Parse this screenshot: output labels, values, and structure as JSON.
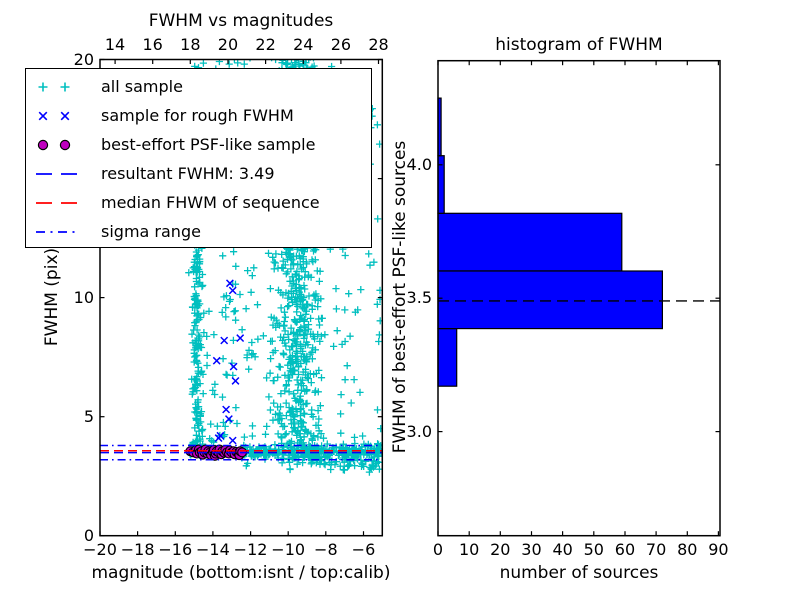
{
  "figure": {
    "background": "#ffffff"
  },
  "colors": {
    "all_sample_cyan": "#00BFBF",
    "rough_sample_blue": "#0000FF",
    "psf_sample_purple": "#BF00BF",
    "median_red": "#FF0000",
    "histogram_bar_blue": "#0000FF",
    "axis_black": "#000000"
  },
  "chart_data": [
    {
      "id": "fwhm_vs_magnitudes",
      "type": "scatter",
      "title": "FWHM vs magnitudes",
      "xlabel": "magnitude (bottom:isnt / top:calib)",
      "ylabel": "FWHM (pix)",
      "xlim": [
        -20,
        -5
      ],
      "ylim": [
        0,
        20
      ],
      "grid": false,
      "x_ticks_bottom": [
        {
          "v": -20,
          "label": "−20"
        },
        {
          "v": -18,
          "label": "−18"
        },
        {
          "v": -16,
          "label": "−16"
        },
        {
          "v": -14,
          "label": "−14"
        },
        {
          "v": -12,
          "label": "−12"
        },
        {
          "v": -10,
          "label": "−10"
        },
        {
          "v": -8,
          "label": "−8"
        },
        {
          "v": -6,
          "label": "−6"
        }
      ],
      "top_axis_offset": 33.2,
      "x_ticks_top": [
        {
          "v": 14,
          "label": "14"
        },
        {
          "v": 16,
          "label": "16"
        },
        {
          "v": 18,
          "label": "18"
        },
        {
          "v": 20,
          "label": "20"
        },
        {
          "v": 22,
          "label": "22"
        },
        {
          "v": 24,
          "label": "24"
        },
        {
          "v": 26,
          "label": "26"
        },
        {
          "v": 28,
          "label": "28"
        }
      ],
      "y_ticks": [
        {
          "v": 0,
          "label": "0"
        },
        {
          "v": 5,
          "label": "5"
        },
        {
          "v": 10,
          "label": "10"
        },
        {
          "v": 15,
          "label": "15"
        },
        {
          "v": 20,
          "label": "20"
        }
      ],
      "resultant_fwhm": 3.49,
      "median_fwhm": 3.57,
      "sigma_range": [
        3.19,
        3.79
      ],
      "hlines": [
        {
          "name": "sigma-upper",
          "y": 3.79,
          "color": "#0000FF",
          "style": "dashdot"
        },
        {
          "name": "sigma-lower",
          "y": 3.19,
          "color": "#0000FF",
          "style": "dashdot"
        },
        {
          "name": "median-fwhm",
          "y": 3.57,
          "color": "#FF0000",
          "style": "dashed"
        },
        {
          "name": "resultant-fwhm",
          "y": 3.49,
          "color": "#0000FF",
          "style": "dashed"
        }
      ],
      "series": [
        {
          "name": "all sample",
          "marker": "plus",
          "color": "#00BFBF",
          "seed": 42,
          "clusters": [
            {
              "name": "left-band",
              "count": 165,
              "x": {
                "dist": "normal",
                "mean": -14.82,
                "sd": 0.14
              },
              "y": {
                "dist": "uniform",
                "min": 3.55,
                "max": 12.5
              }
            },
            {
              "name": "left-band-high",
              "count": 28,
              "x": {
                "dist": "normal",
                "mean": -14.8,
                "sd": 0.18
              },
              "y": {
                "dist": "uniform",
                "min": 12.5,
                "max": 19.9
              }
            },
            {
              "name": "mid-sparse",
              "count": 120,
              "x": {
                "dist": "uniform",
                "min": -14.55,
                "max": -11.75
              },
              "y": {
                "dist": "uniform",
                "min": 3.9,
                "max": 20.2
              }
            },
            {
              "name": "core-dense",
              "count": 620,
              "x": {
                "dist": "normal",
                "mean": -9.55,
                "sd": 0.6,
                "min": -11.3,
                "max": -7.5
              },
              "y": {
                "dist": "uniform",
                "min": 3.4,
                "max": 20.4
              }
            },
            {
              "name": "core-halo",
              "count": 240,
              "x": {
                "dist": "normal",
                "mean": -9.4,
                "sd": 1.35,
                "min": -12.1,
                "max": -6.7
              },
              "y": {
                "dist": "uniform",
                "min": 3.3,
                "max": 20.3
              }
            },
            {
              "name": "stellar-locus",
              "count": 270,
              "x": {
                "dist": "uniform",
                "min": -12.7,
                "max": -5.05
              },
              "y": {
                "dist": "normal",
                "mean": 3.52,
                "sd": 0.13
              }
            },
            {
              "name": "locus-left",
              "count": 25,
              "x": {
                "dist": "uniform",
                "min": -15.55,
                "max": -12.7
              },
              "y": {
                "dist": "normal",
                "mean": 3.5,
                "sd": 0.1
              }
            },
            {
              "name": "below-locus",
              "count": 60,
              "x": {
                "dist": "uniform",
                "min": -8.8,
                "max": -5.05
              },
              "y": {
                "dist": "normal",
                "mean": 3.05,
                "sd": 0.22,
                "max": 3.35
              }
            },
            {
              "name": "below-locus-left",
              "count": 12,
              "x": {
                "dist": "uniform",
                "min": -12.3,
                "max": -8.8
              },
              "y": {
                "dist": "normal",
                "mean": 3.15,
                "sd": 0.15,
                "max": 3.3
              }
            },
            {
              "name": "right-sparse",
              "count": 25,
              "x": {
                "dist": "uniform",
                "min": -7.5,
                "max": -5.05
              },
              "y": {
                "dist": "uniform",
                "min": 3.8,
                "max": 10.5
              }
            },
            {
              "name": "upper-right-sparse",
              "count": 14,
              "x": {
                "dist": "uniform",
                "min": -7.2,
                "max": -5.3
              },
              "y": {
                "dist": "uniform",
                "min": 11.0,
                "max": 19.8
              }
            },
            {
              "name": "right-high-sparse",
              "count": 10,
              "x": {
                "dist": "uniform",
                "min": -5.8,
                "max": -5.02
              },
              "y": {
                "dist": "uniform",
                "min": 4.0,
                "max": 19.5
              }
            }
          ]
        },
        {
          "name": "sample for rough FWHM",
          "marker": "x",
          "color": "#0000FF",
          "points": [
            [
              -13.1,
              10.6
            ],
            [
              -12.95,
              10.3
            ],
            [
              -13.4,
              8.2
            ],
            [
              -12.55,
              8.3
            ],
            [
              -13.8,
              7.35
            ],
            [
              -12.9,
              7.1
            ],
            [
              -12.8,
              6.5
            ],
            [
              -13.3,
              5.3
            ],
            [
              -13.15,
              4.9
            ],
            [
              -13.6,
              4.2
            ],
            [
              -13.7,
              4.1
            ],
            [
              -12.95,
              4.0
            ],
            [
              -14.2,
              3.6
            ],
            [
              -13.9,
              3.5
            ],
            [
              -13.5,
              3.55
            ],
            [
              -13.2,
              3.45
            ],
            [
              -12.9,
              3.55
            ],
            [
              -12.6,
              3.5
            ],
            [
              -13.35,
              3.62
            ],
            [
              -14.0,
              3.66
            ],
            [
              -14.45,
              3.52
            ],
            [
              -12.7,
              3.44
            ]
          ]
        },
        {
          "name": "best-effort PSF-like sample",
          "marker": "circle",
          "color": "#BF00BF",
          "edge_color": "#000000",
          "points": [
            [
              -15.2,
              3.55
            ],
            [
              -15.05,
              3.5
            ],
            [
              -14.9,
              3.6
            ],
            [
              -14.85,
              3.45
            ],
            [
              -14.75,
              3.62
            ],
            [
              -14.7,
              3.5
            ],
            [
              -14.6,
              3.55
            ],
            [
              -14.55,
              3.4
            ],
            [
              -14.45,
              3.5
            ],
            [
              -14.4,
              3.62
            ],
            [
              -14.3,
              3.45
            ],
            [
              -14.25,
              3.55
            ],
            [
              -14.15,
              3.5
            ],
            [
              -14.1,
              3.38
            ],
            [
              -14.0,
              3.52
            ],
            [
              -13.95,
              3.6
            ],
            [
              -13.9,
              3.35
            ],
            [
              -13.85,
              3.45
            ],
            [
              -13.8,
              3.55
            ],
            [
              -13.7,
              3.5
            ],
            [
              -13.65,
              3.62
            ],
            [
              -13.55,
              3.42
            ],
            [
              -13.5,
              3.55
            ],
            [
              -13.4,
              3.48
            ],
            [
              -13.35,
              3.6
            ],
            [
              -13.25,
              3.5
            ],
            [
              -13.15,
              3.45
            ],
            [
              -13.1,
              3.58
            ],
            [
              -13.0,
              3.5
            ],
            [
              -12.9,
              3.55
            ],
            [
              -12.85,
              3.42
            ],
            [
              -12.75,
              3.52
            ],
            [
              -12.65,
              3.48
            ],
            [
              -12.6,
              3.38
            ],
            [
              -12.55,
              3.55
            ],
            [
              -12.45,
              3.5
            ]
          ]
        }
      ],
      "legend": [
        {
          "label": "all sample",
          "marker": "plus-pair"
        },
        {
          "label": "sample for rough FWHM",
          "marker": "x-pair"
        },
        {
          "label": "best-effort PSF-like sample",
          "marker": "circle-pair"
        },
        {
          "label": "resultant FWHM: 3.49",
          "marker": "dashed-blue-line"
        },
        {
          "label": "median FHWM of sequence",
          "marker": "dashed-red-line"
        },
        {
          "label": "sigma range",
          "marker": "dashdot-blue-line"
        }
      ]
    },
    {
      "id": "histogram_of_fwhm",
      "type": "bar",
      "orientation": "horizontal",
      "title": "histogram of FWHM",
      "xlabel": "number of sources",
      "ylabel": "FWHM of best-effort PSF-like sources",
      "xlim": [
        0,
        90.5
      ],
      "ylim": [
        2.61,
        4.39
      ],
      "grid": false,
      "x_ticks": [
        {
          "v": 0,
          "label": "0"
        },
        {
          "v": 10,
          "label": "10"
        },
        {
          "v": 20,
          "label": "20"
        },
        {
          "v": 30,
          "label": "30"
        },
        {
          "v": 40,
          "label": "40"
        },
        {
          "v": 50,
          "label": "50"
        },
        {
          "v": 60,
          "label": "60"
        },
        {
          "v": 70,
          "label": "70"
        },
        {
          "v": 80,
          "label": "80"
        },
        {
          "v": 90,
          "label": "90"
        }
      ],
      "y_ticks": [
        {
          "v": 3.0,
          "label": "3.0"
        },
        {
          "v": 3.5,
          "label": "3.5"
        },
        {
          "v": 4.0,
          "label": "4.0"
        }
      ],
      "bin_edges": [
        3.17,
        3.386,
        3.602,
        3.818,
        4.034,
        4.25
      ],
      "counts": [
        6,
        72,
        59,
        2,
        1
      ],
      "bar_color": "#0000FF",
      "bar_edge_color": "#000000",
      "dashed_line_y": 3.49,
      "dashed_line_color": "#000000"
    }
  ]
}
